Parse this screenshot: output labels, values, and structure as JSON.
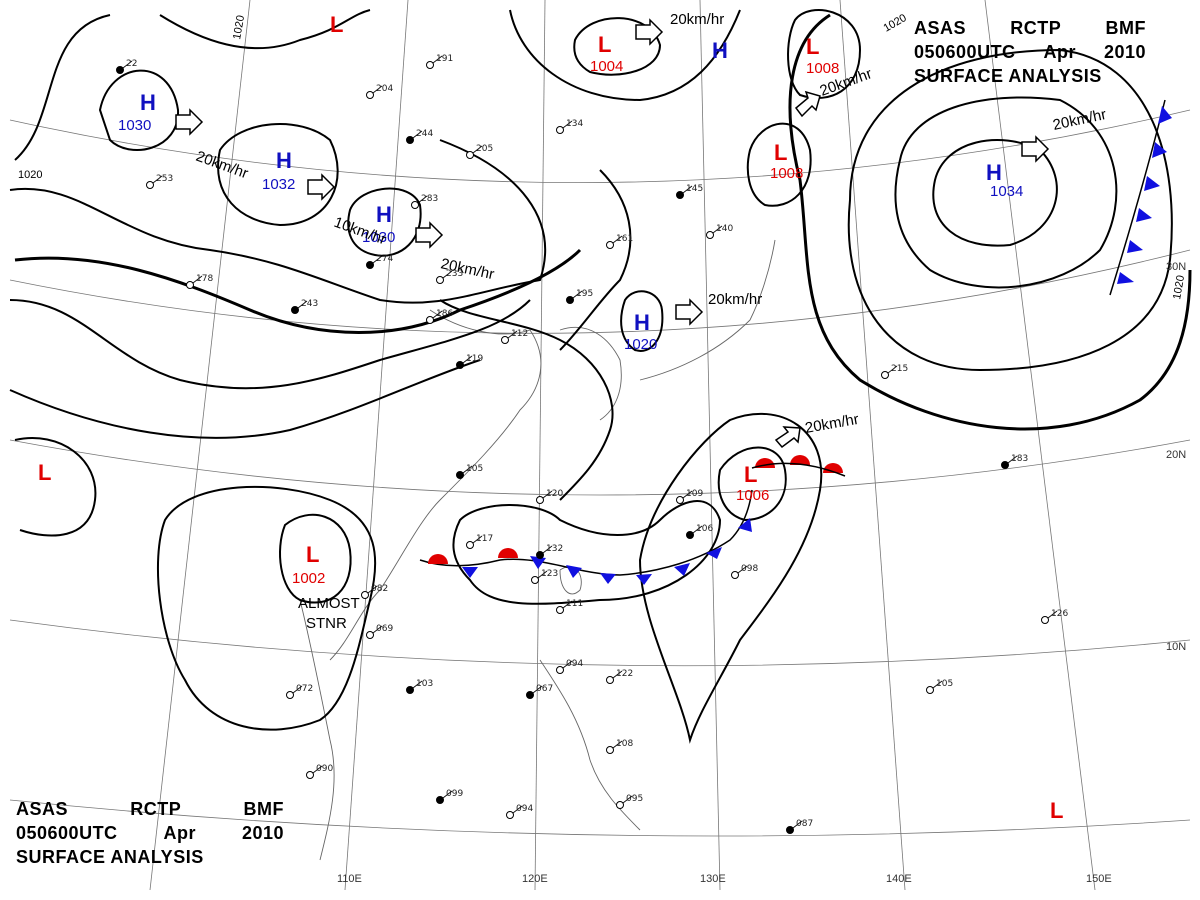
{
  "chart_title": {
    "agency_codes": [
      "ASAS",
      "RCTP",
      "BMF"
    ],
    "valid_time": "050600UTC",
    "month": "Apr",
    "year": "2010",
    "product": "SURFACE ANALYSIS"
  },
  "colors": {
    "high": "#1010c0",
    "low": "#e00000",
    "cold_front": "#1010e0",
    "warm_front": "#e00000",
    "isobar": "#000000",
    "grid": "#888888"
  },
  "pressure_centers": [
    {
      "type": "H",
      "value": "1030"
    },
    {
      "type": "H",
      "value": "1032"
    },
    {
      "type": "H",
      "value": "1030"
    },
    {
      "type": "H",
      "value": "1020"
    },
    {
      "type": "H",
      "value": "1034"
    },
    {
      "type": "H",
      "value": ""
    },
    {
      "type": "L",
      "value": "1004"
    },
    {
      "type": "L",
      "value": "1008"
    },
    {
      "type": "L",
      "value": "1008"
    },
    {
      "type": "L",
      "value": "1006"
    },
    {
      "type": "L",
      "value": "1002"
    },
    {
      "type": "L",
      "value": ""
    },
    {
      "type": "L",
      "value": ""
    },
    {
      "type": "L",
      "value": ""
    }
  ],
  "motion_labels": [
    "20km/hr",
    "10km/hr",
    "20km/hr",
    "20km/hr",
    "20km/hr",
    "20km/hr",
    "20km/hr",
    "20km/hr"
  ],
  "annotations": [
    "ALMOST",
    "STNR"
  ],
  "isobar_labels": [
    "1020",
    "1020",
    "1020",
    "1020"
  ],
  "longitude_labels": [
    "110E",
    "120E",
    "130E",
    "140E",
    "150E"
  ],
  "latitude_labels": [
    "30N",
    "20N",
    "10N"
  ],
  "station_values": [
    "22",
    "253",
    "161",
    "195",
    "186",
    "112",
    "119",
    "117",
    "123",
    "132",
    "111",
    "069",
    "103",
    "072",
    "090",
    "099",
    "094",
    "122",
    "067",
    "108",
    "095",
    "087",
    "105",
    "126",
    "183",
    "215",
    "098",
    "106",
    "109",
    "140",
    "145",
    "134",
    "205",
    "244",
    "204",
    "191",
    "274",
    "233",
    "283",
    "243",
    "178",
    "120",
    "105",
    "082",
    "094"
  ]
}
